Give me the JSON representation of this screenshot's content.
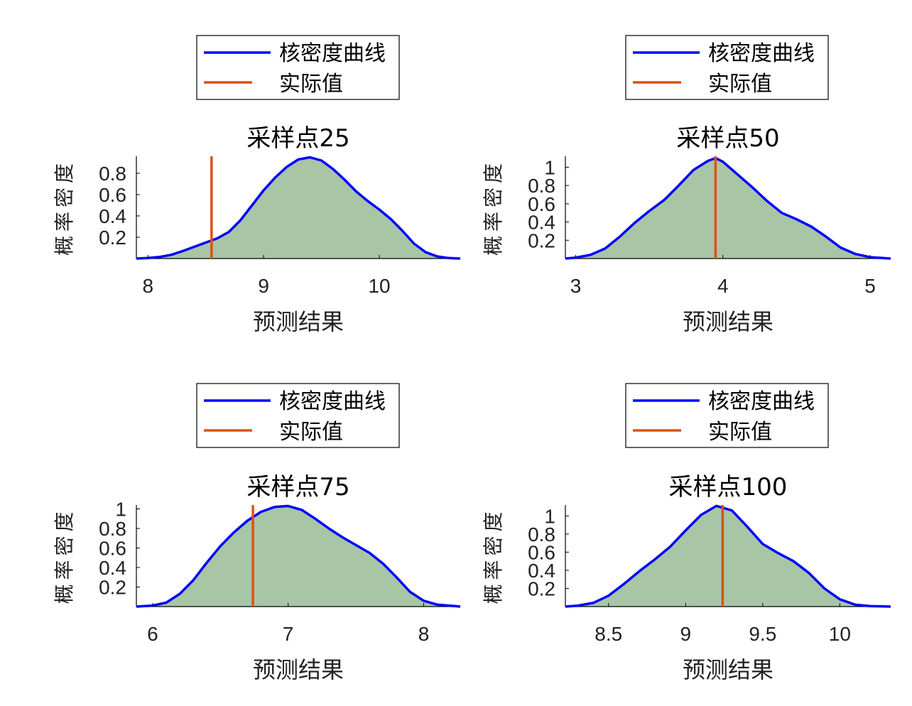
{
  "colors": {
    "kde_line": "#0000ff",
    "actual_line": "#d95319",
    "fill": "#a8c5a5",
    "axis": "#000000"
  },
  "chart_data": [
    {
      "type": "area",
      "title": "采样点25",
      "xlabel": "预测结果",
      "ylabel": "概率密度",
      "legend": [
        "核密度曲线",
        "实际值"
      ],
      "legend_placement": "top",
      "xlim": [
        7.9,
        10.7
      ],
      "ylim": [
        0,
        0.96
      ],
      "xticks": [
        8,
        9,
        10
      ],
      "yticks": [
        0.2,
        0.4,
        0.6,
        0.8
      ],
      "actual_value": 8.55,
      "series": [
        {
          "name": "核密度曲线",
          "x": [
            7.9,
            8.0,
            8.1,
            8.2,
            8.3,
            8.4,
            8.5,
            8.6,
            8.7,
            8.8,
            8.9,
            9.0,
            9.1,
            9.2,
            9.3,
            9.4,
            9.5,
            9.6,
            9.7,
            9.8,
            9.9,
            10.0,
            10.1,
            10.2,
            10.3,
            10.4,
            10.5,
            10.6,
            10.7
          ],
          "y": [
            0.0,
            0.005,
            0.015,
            0.035,
            0.07,
            0.11,
            0.15,
            0.19,
            0.25,
            0.36,
            0.5,
            0.64,
            0.76,
            0.86,
            0.93,
            0.95,
            0.92,
            0.84,
            0.74,
            0.63,
            0.54,
            0.46,
            0.37,
            0.26,
            0.14,
            0.06,
            0.02,
            0.005,
            0.0
          ]
        }
      ]
    },
    {
      "type": "area",
      "title": "采样点50",
      "xlabel": "预测结果",
      "ylabel": "概率密度",
      "legend": [
        "核密度曲线",
        "实际值"
      ],
      "legend_placement": "top",
      "xlim": [
        2.93,
        5.14
      ],
      "ylim": [
        0,
        1.12
      ],
      "xticks": [
        3,
        4,
        5
      ],
      "yticks": [
        0.2,
        0.4,
        0.6,
        0.8,
        1
      ],
      "actual_value": 3.95,
      "series": [
        {
          "name": "核密度曲线",
          "x": [
            2.93,
            3.0,
            3.1,
            3.2,
            3.3,
            3.4,
            3.5,
            3.6,
            3.7,
            3.8,
            3.9,
            3.95,
            4.0,
            4.1,
            4.2,
            4.3,
            4.4,
            4.5,
            4.6,
            4.7,
            4.8,
            4.9,
            5.0,
            5.14
          ],
          "y": [
            0.0,
            0.01,
            0.04,
            0.11,
            0.24,
            0.39,
            0.52,
            0.64,
            0.8,
            0.97,
            1.07,
            1.1,
            1.06,
            0.92,
            0.78,
            0.63,
            0.5,
            0.43,
            0.35,
            0.24,
            0.12,
            0.05,
            0.015,
            0.0
          ]
        }
      ]
    },
    {
      "type": "area",
      "title": "采样点75",
      "xlabel": "预测结果",
      "ylabel": "概率密度",
      "legend": [
        "核密度曲线",
        "实际值"
      ],
      "legend_placement": "top",
      "xlim": [
        5.88,
        8.27
      ],
      "ylim": [
        0,
        1.04
      ],
      "xticks": [
        6,
        7,
        8
      ],
      "yticks": [
        0.2,
        0.4,
        0.6,
        0.8,
        1
      ],
      "actual_value": 6.74,
      "series": [
        {
          "name": "核密度曲线",
          "x": [
            5.88,
            6.0,
            6.1,
            6.2,
            6.3,
            6.4,
            6.5,
            6.6,
            6.7,
            6.8,
            6.9,
            7.0,
            7.1,
            7.2,
            7.3,
            7.4,
            7.5,
            7.6,
            7.7,
            7.8,
            7.9,
            8.0,
            8.1,
            8.27
          ],
          "y": [
            0.0,
            0.01,
            0.04,
            0.13,
            0.27,
            0.45,
            0.62,
            0.76,
            0.88,
            0.97,
            1.02,
            1.03,
            0.99,
            0.9,
            0.8,
            0.71,
            0.63,
            0.55,
            0.44,
            0.3,
            0.15,
            0.06,
            0.02,
            0.0
          ]
        }
      ]
    },
    {
      "type": "area",
      "title": "采样点100",
      "xlabel": "预测结果",
      "ylabel": "概率密度",
      "legend": [
        "核密度曲线",
        "实际值"
      ],
      "legend_placement": "top",
      "xlim": [
        8.22,
        10.33
      ],
      "ylim": [
        0,
        1.12
      ],
      "xticks": [
        8.5,
        9,
        9.5,
        10
      ],
      "yticks": [
        0.2,
        0.4,
        0.6,
        0.8,
        1
      ],
      "actual_value": 9.24,
      "series": [
        {
          "name": "核密度曲线",
          "x": [
            8.22,
            8.3,
            8.4,
            8.5,
            8.6,
            8.7,
            8.8,
            8.9,
            9.0,
            9.1,
            9.2,
            9.3,
            9.4,
            9.5,
            9.6,
            9.7,
            9.8,
            9.9,
            10.0,
            10.1,
            10.2,
            10.33
          ],
          "y": [
            0.0,
            0.01,
            0.04,
            0.12,
            0.25,
            0.39,
            0.52,
            0.66,
            0.84,
            1.01,
            1.11,
            1.06,
            0.88,
            0.69,
            0.59,
            0.5,
            0.37,
            0.2,
            0.08,
            0.02,
            0.005,
            0.0
          ]
        }
      ]
    }
  ]
}
